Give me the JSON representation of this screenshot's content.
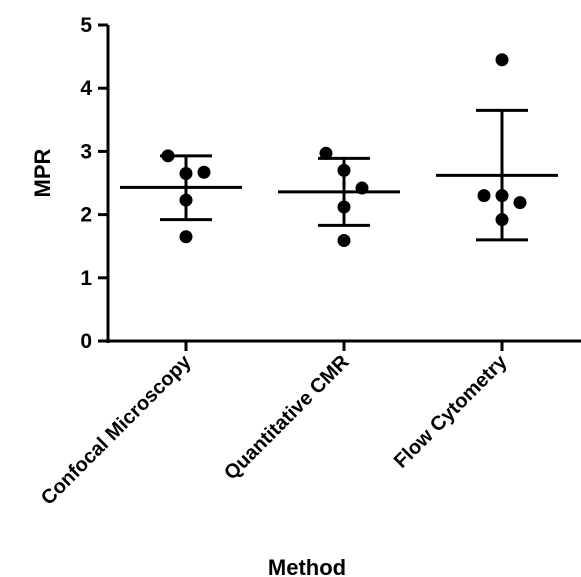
{
  "chart_data": {
    "type": "scatter",
    "xlabel": "Method",
    "ylabel": "MPR",
    "ylim": [
      0,
      5
    ],
    "yticks": [
      0,
      1,
      2,
      3,
      4,
      5
    ],
    "grid": false,
    "colors": {
      "points": "#000000",
      "axes": "#000000"
    },
    "categories": [
      "Confocal Microscopy",
      "Quantitative CMR",
      "Flow Cytometry"
    ],
    "groups": [
      {
        "category": "Confocal Microscopy",
        "points": [
          2.93,
          2.65,
          2.67,
          2.23,
          1.65
        ],
        "mean": 2.43,
        "sd_low": 1.92,
        "sd_high": 2.93
      },
      {
        "category": "Quantitative CMR",
        "points": [
          2.97,
          2.7,
          2.42,
          2.12,
          1.59
        ],
        "mean": 2.36,
        "sd_low": 1.83,
        "sd_high": 2.89
      },
      {
        "category": "Flow Cytometry",
        "points": [
          4.45,
          2.3,
          2.3,
          2.19,
          1.92
        ],
        "mean": 2.62,
        "sd_low": 1.6,
        "sd_high": 3.65
      }
    ]
  }
}
